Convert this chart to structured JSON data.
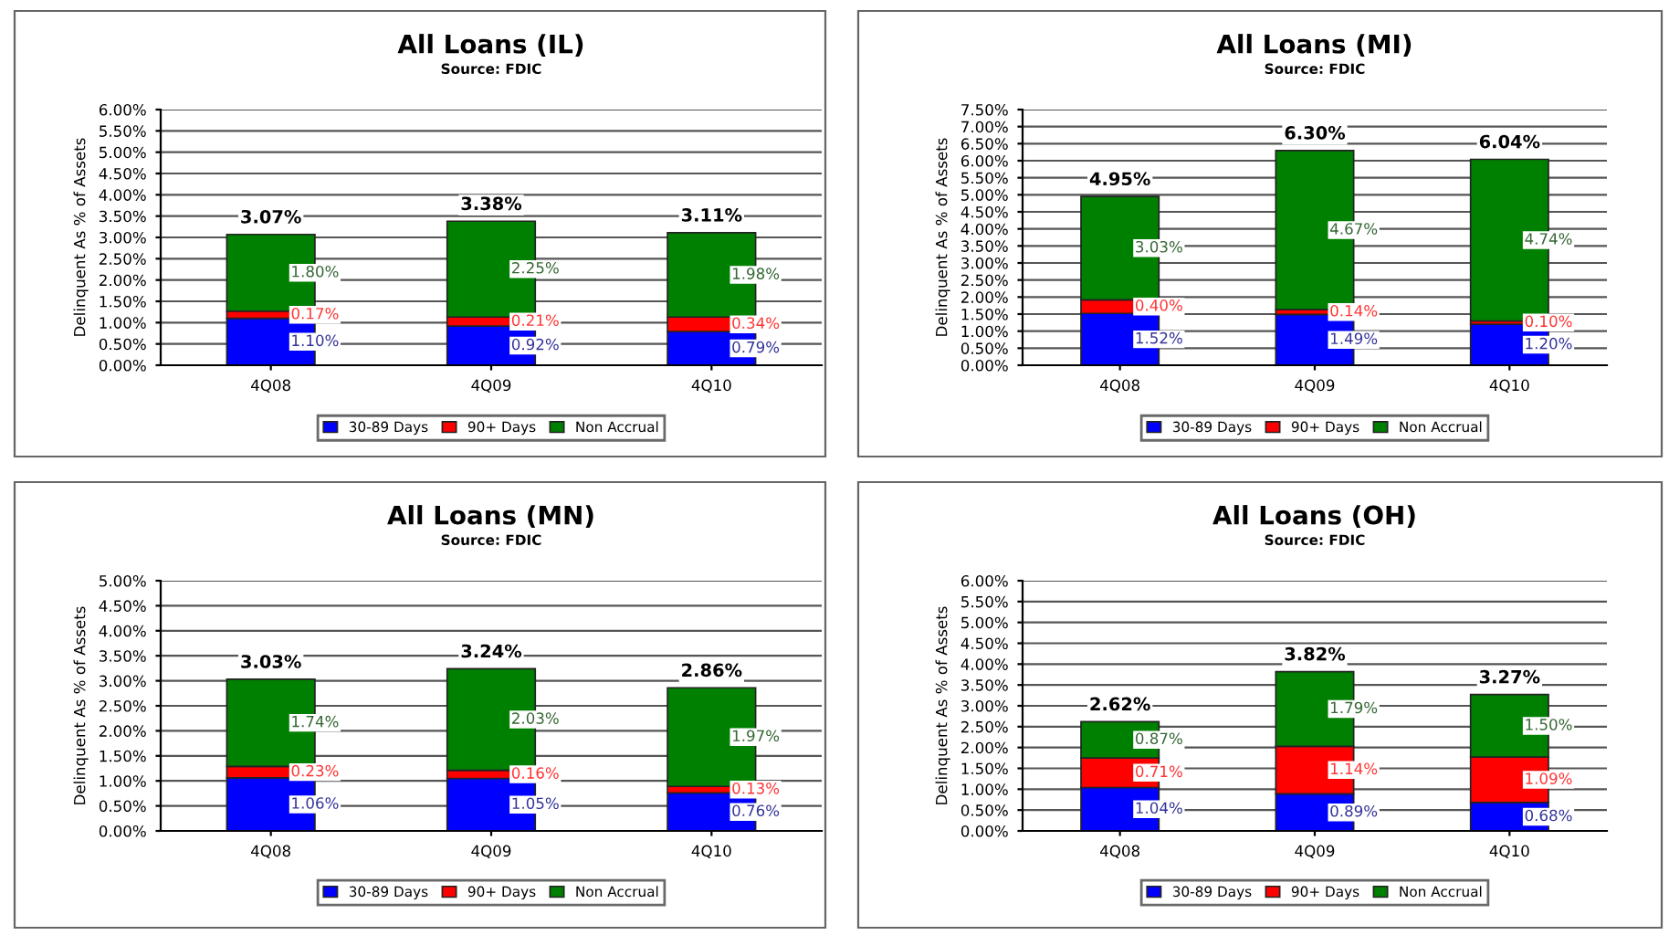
{
  "chart_data": [
    {
      "type": "bar",
      "stacked": true,
      "title": "All Loans (IL)",
      "subtitle": "Source: FDIC",
      "ylabel": "Delinquent As % of Assets",
      "categories": [
        "4Q08",
        "4Q09",
        "4Q10"
      ],
      "grid": "y",
      "legend": "bottom",
      "ylim": [
        0,
        6
      ],
      "yticks": [
        {
          "value": 0,
          "label": "0.00%"
        },
        {
          "value": 0.5,
          "label": "0.50%"
        },
        {
          "value": 1,
          "label": "1.00%"
        },
        {
          "value": 1.5,
          "label": "1.50%"
        },
        {
          "value": 2,
          "label": "2.00%"
        },
        {
          "value": 2.5,
          "label": "2.50%"
        },
        {
          "value": 3,
          "label": "3.00%"
        },
        {
          "value": 3.5,
          "label": "3.50%"
        },
        {
          "value": 4,
          "label": "4.00%"
        },
        {
          "value": 4.5,
          "label": "4.50%"
        },
        {
          "value": 5,
          "label": "5.00%"
        },
        {
          "value": 5.5,
          "label": "5.50%"
        },
        {
          "value": 6,
          "label": "6.00%"
        }
      ],
      "series": [
        {
          "name": "30-89 Days",
          "color": "#0000ff",
          "values": [
            1.1,
            0.92,
            0.79
          ],
          "value_labels": [
            "1.10%",
            "0.92%",
            "0.79%"
          ]
        },
        {
          "name": "90+ Days",
          "color": "#ff0000",
          "values": [
            0.17,
            0.21,
            0.34
          ],
          "value_labels": [
            "0.17%",
            "0.21%",
            "0.34%"
          ]
        },
        {
          "name": "Non Accrual",
          "color": "#008000",
          "values": [
            1.8,
            2.25,
            1.98
          ],
          "value_labels": [
            "1.80%",
            "2.25%",
            "1.98%"
          ]
        }
      ],
      "totals": [
        "3.07%",
        "3.38%",
        "3.11%"
      ]
    },
    {
      "type": "bar",
      "stacked": true,
      "title": "All Loans (MI)",
      "subtitle": "Source: FDIC",
      "ylabel": "Delinquent As % of Assets",
      "categories": [
        "4Q08",
        "4Q09",
        "4Q10"
      ],
      "grid": "y",
      "legend": "bottom",
      "ylim": [
        0,
        7.5
      ],
      "yticks": [
        {
          "value": 0,
          "label": "0.00%"
        },
        {
          "value": 0.5,
          "label": "0.50%"
        },
        {
          "value": 1,
          "label": "1.00%"
        },
        {
          "value": 1.5,
          "label": "1.50%"
        },
        {
          "value": 2,
          "label": "2.00%"
        },
        {
          "value": 2.5,
          "label": "2.50%"
        },
        {
          "value": 3,
          "label": "3.00%"
        },
        {
          "value": 3.5,
          "label": "3.50%"
        },
        {
          "value": 4,
          "label": "4.00%"
        },
        {
          "value": 4.5,
          "label": "4.50%"
        },
        {
          "value": 5,
          "label": "5.00%"
        },
        {
          "value": 5.5,
          "label": "5.50%"
        },
        {
          "value": 6,
          "label": "6.00%"
        },
        {
          "value": 6.5,
          "label": "6.50%"
        },
        {
          "value": 7,
          "label": "7.00%"
        },
        {
          "value": 7.5,
          "label": "7.50%"
        }
      ],
      "series": [
        {
          "name": "30-89 Days",
          "color": "#0000ff",
          "values": [
            1.52,
            1.49,
            1.2
          ],
          "value_labels": [
            "1.52%",
            "1.49%",
            "1.20%"
          ]
        },
        {
          "name": "90+ Days",
          "color": "#ff0000",
          "values": [
            0.4,
            0.14,
            0.1
          ],
          "value_labels": [
            "0.40%",
            "0.14%",
            "0.10%"
          ]
        },
        {
          "name": "Non Accrual",
          "color": "#008000",
          "values": [
            3.03,
            4.67,
            4.74
          ],
          "value_labels": [
            "3.03%",
            "4.67%",
            "4.74%"
          ]
        }
      ],
      "totals": [
        "4.95%",
        "6.30%",
        "6.04%"
      ]
    },
    {
      "type": "bar",
      "stacked": true,
      "title": "All Loans (MN)",
      "subtitle": "Source: FDIC",
      "ylabel": "Delinquent As % of Assets",
      "categories": [
        "4Q08",
        "4Q09",
        "4Q10"
      ],
      "grid": "y",
      "legend": "bottom",
      "ylim": [
        0,
        5
      ],
      "yticks": [
        {
          "value": 0,
          "label": "0.00%"
        },
        {
          "value": 0.5,
          "label": "0.50%"
        },
        {
          "value": 1,
          "label": "1.00%"
        },
        {
          "value": 1.5,
          "label": "1.50%"
        },
        {
          "value": 2,
          "label": "2.00%"
        },
        {
          "value": 2.5,
          "label": "2.50%"
        },
        {
          "value": 3,
          "label": "3.00%"
        },
        {
          "value": 3.5,
          "label": "3.50%"
        },
        {
          "value": 4,
          "label": "4.00%"
        },
        {
          "value": 4.5,
          "label": "4.50%"
        },
        {
          "value": 5,
          "label": "5.00%"
        }
      ],
      "series": [
        {
          "name": "30-89 Days",
          "color": "#0000ff",
          "values": [
            1.06,
            1.05,
            0.76
          ],
          "value_labels": [
            "1.06%",
            "1.05%",
            "0.76%"
          ]
        },
        {
          "name": "90+ Days",
          "color": "#ff0000",
          "values": [
            0.23,
            0.16,
            0.13
          ],
          "value_labels": [
            "0.23%",
            "0.16%",
            "0.13%"
          ]
        },
        {
          "name": "Non Accrual",
          "color": "#008000",
          "values": [
            1.74,
            2.03,
            1.97
          ],
          "value_labels": [
            "1.74%",
            "2.03%",
            "1.97%"
          ]
        }
      ],
      "totals": [
        "3.03%",
        "3.24%",
        "2.86%"
      ]
    },
    {
      "type": "bar",
      "stacked": true,
      "title": "All Loans (OH)",
      "subtitle": "Source: FDIC",
      "ylabel": "Delinquent As % of Assets",
      "categories": [
        "4Q08",
        "4Q09",
        "4Q10"
      ],
      "grid": "y",
      "legend": "bottom",
      "ylim": [
        0,
        6
      ],
      "yticks": [
        {
          "value": 0,
          "label": "0.00%"
        },
        {
          "value": 0.5,
          "label": "0.50%"
        },
        {
          "value": 1,
          "label": "1.00%"
        },
        {
          "value": 1.5,
          "label": "1.50%"
        },
        {
          "value": 2,
          "label": "2.00%"
        },
        {
          "value": 2.5,
          "label": "2.50%"
        },
        {
          "value": 3,
          "label": "3.00%"
        },
        {
          "value": 3.5,
          "label": "3.50%"
        },
        {
          "value": 4,
          "label": "4.00%"
        },
        {
          "value": 4.5,
          "label": "4.50%"
        },
        {
          "value": 5,
          "label": "5.00%"
        },
        {
          "value": 5.5,
          "label": "5.50%"
        },
        {
          "value": 6,
          "label": "6.00%"
        }
      ],
      "series": [
        {
          "name": "30-89 Days",
          "color": "#0000ff",
          "values": [
            1.04,
            0.89,
            0.68
          ],
          "value_labels": [
            "1.04%",
            "0.89%",
            "0.68%"
          ]
        },
        {
          "name": "90+ Days",
          "color": "#ff0000",
          "values": [
            0.71,
            1.14,
            1.09
          ],
          "value_labels": [
            "0.71%",
            "1.14%",
            "1.09%"
          ]
        },
        {
          "name": "Non Accrual",
          "color": "#008000",
          "values": [
            0.87,
            1.79,
            1.5
          ],
          "value_labels": [
            "0.87%",
            "1.79%",
            "1.50%"
          ]
        }
      ],
      "totals": [
        "2.62%",
        "3.82%",
        "3.27%"
      ]
    }
  ]
}
